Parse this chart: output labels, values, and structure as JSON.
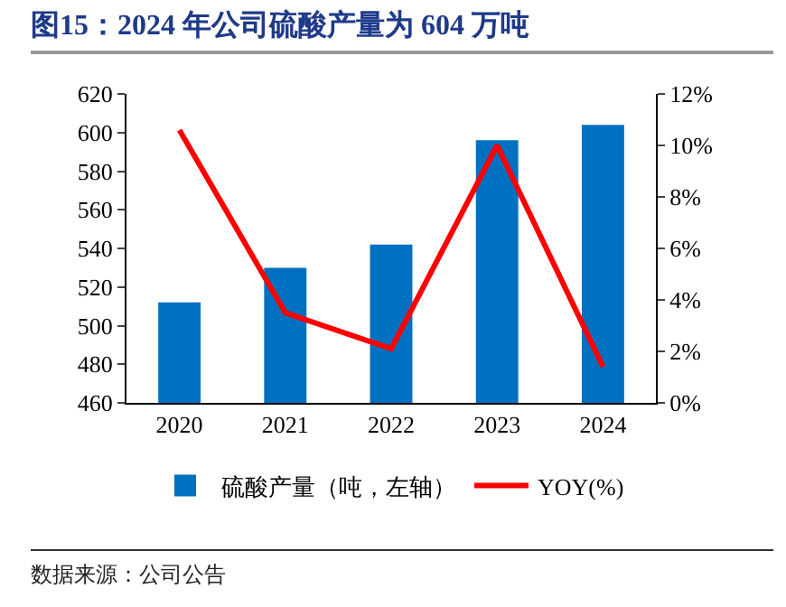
{
  "chart_data": {
    "type": "bar",
    "title": "图15：2024 年公司硫酸产量为 604 万吨",
    "categories": [
      "2020",
      "2021",
      "2022",
      "2023",
      "2024"
    ],
    "series": [
      {
        "name": "硫酸产量（吨，左轴）",
        "color": "#0070c0",
        "values": [
          512,
          530,
          542,
          596,
          604
        ]
      },
      {
        "name": "YOY(%)",
        "type": "line",
        "axis": "y2",
        "color": "#ff0000",
        "values": [
          10.6,
          3.5,
          2.1,
          10.0,
          1.4
        ]
      }
    ],
    "ylim": [
      460,
      620
    ],
    "yticks": [
      460,
      480,
      500,
      520,
      540,
      560,
      580,
      600,
      620
    ],
    "y2lim": [
      0,
      12
    ],
    "y2ticks": [
      {
        "value": 0,
        "label": "0%"
      },
      {
        "value": 2,
        "label": "2%"
      },
      {
        "value": 4,
        "label": "4%"
      },
      {
        "value": 6,
        "label": "6%"
      },
      {
        "value": 8,
        "label": "8%"
      },
      {
        "value": 10,
        "label": "10%"
      },
      {
        "value": 12,
        "label": "12%"
      }
    ],
    "legend": "bottom",
    "grid": false,
    "marker": "none",
    "line_style": "solid",
    "annotations": [
      "数据来源：公司公告"
    ]
  }
}
